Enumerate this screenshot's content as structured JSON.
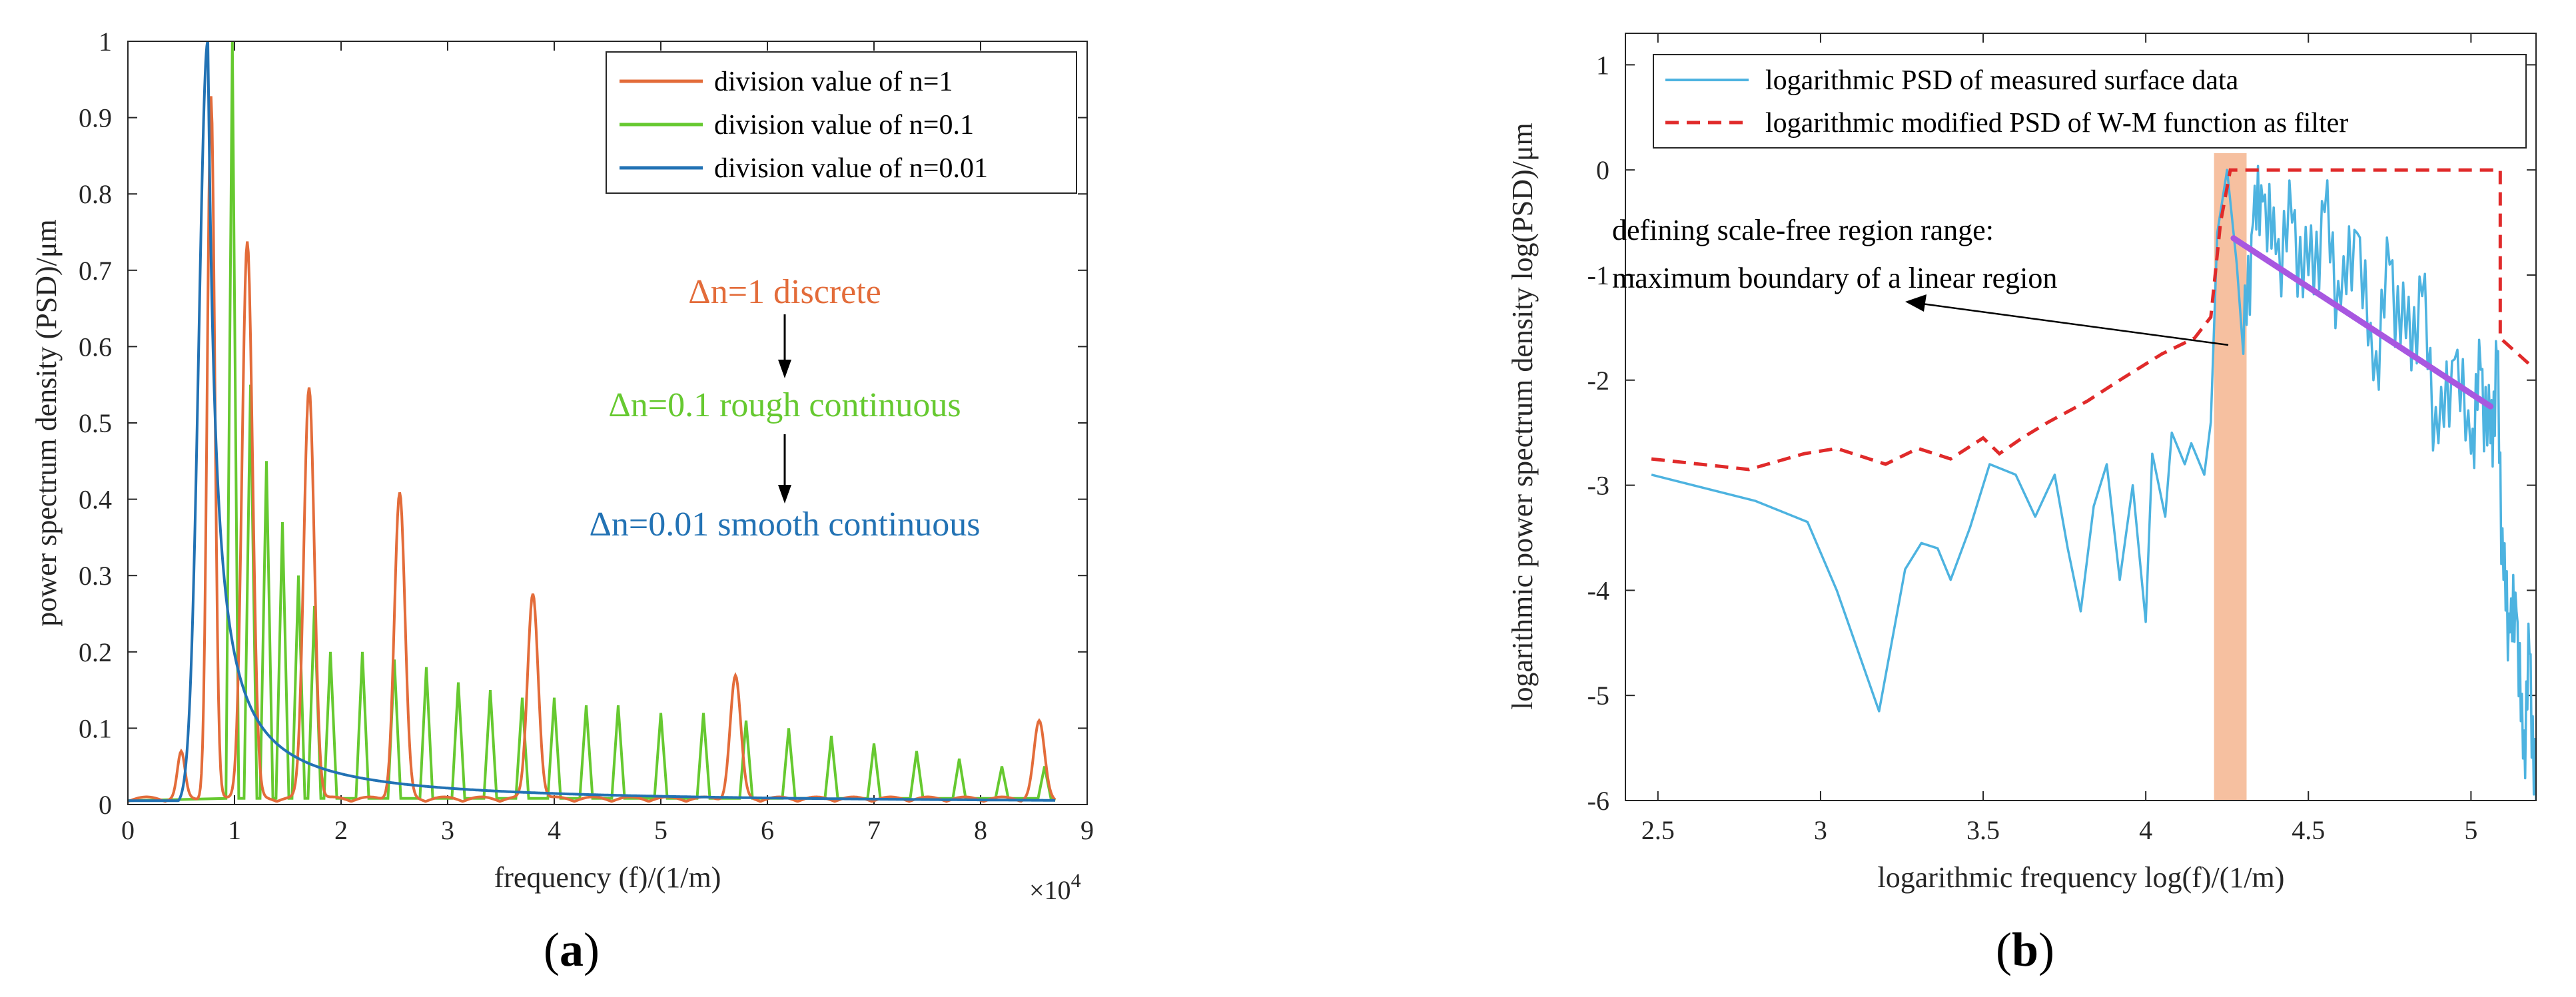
{
  "figure": {
    "panel_a_label": "(a)",
    "panel_b_label": "(b)"
  },
  "chart_data": [
    {
      "type": "line",
      "title": "",
      "xlabel": "frequency (f)/(1/m)",
      "ylabel": "power spectrum density (PSD)/μm",
      "x_exponent_label": "×10",
      "x_exponent_power": "4",
      "xlim": [
        0,
        9
      ],
      "ylim": [
        0,
        1
      ],
      "x_ticks": [
        "0",
        "1",
        "2",
        "3",
        "4",
        "5",
        "6",
        "7",
        "8",
        "9"
      ],
      "y_ticks": [
        "0",
        "0.1",
        "0.2",
        "0.3",
        "0.4",
        "0.5",
        "0.6",
        "0.7",
        "0.8",
        "0.9",
        "1"
      ],
      "legend_position": "top-right",
      "series": [
        {
          "name": "division value of n=1",
          "color": "#e36c3a",
          "peaks": [
            {
              "x": 0.5,
              "y": 0.06
            },
            {
              "x": 0.78,
              "y": 0.92
            },
            {
              "x": 1.12,
              "y": 0.73
            },
            {
              "x": 1.7,
              "y": 0.54
            },
            {
              "x": 2.55,
              "y": 0.4
            },
            {
              "x": 3.8,
              "y": 0.27
            },
            {
              "x": 5.7,
              "y": 0.16
            },
            {
              "x": 8.55,
              "y": 0.1
            }
          ]
        },
        {
          "name": "division value of n=0.1",
          "color": "#66c930",
          "peaks": [
            {
              "x": 0.98,
              "y": 1.0
            },
            {
              "x": 1.15,
              "y": 0.55
            },
            {
              "x": 1.3,
              "y": 0.45
            },
            {
              "x": 1.45,
              "y": 0.37
            },
            {
              "x": 1.6,
              "y": 0.3
            },
            {
              "x": 1.75,
              "y": 0.26
            },
            {
              "x": 1.9,
              "y": 0.2
            },
            {
              "x": 2.2,
              "y": 0.2
            },
            {
              "x": 2.5,
              "y": 0.19
            },
            {
              "x": 2.8,
              "y": 0.18
            },
            {
              "x": 3.1,
              "y": 0.16
            },
            {
              "x": 3.4,
              "y": 0.15
            },
            {
              "x": 3.7,
              "y": 0.14
            },
            {
              "x": 4.0,
              "y": 0.14
            },
            {
              "x": 4.3,
              "y": 0.13
            },
            {
              "x": 4.6,
              "y": 0.13
            },
            {
              "x": 5.0,
              "y": 0.12
            },
            {
              "x": 5.4,
              "y": 0.12
            },
            {
              "x": 5.8,
              "y": 0.11
            },
            {
              "x": 6.2,
              "y": 0.1
            },
            {
              "x": 6.6,
              "y": 0.09
            },
            {
              "x": 7.0,
              "y": 0.08
            },
            {
              "x": 7.4,
              "y": 0.07
            },
            {
              "x": 7.8,
              "y": 0.06
            },
            {
              "x": 8.2,
              "y": 0.05
            },
            {
              "x": 8.6,
              "y": 0.05
            }
          ]
        },
        {
          "name": "division value of n=0.01",
          "color": "#2272b4",
          "peak_x": 0.75,
          "peak_y": 1.0,
          "tail_end_x": 8.7,
          "tail_end_y": 0.005
        }
      ],
      "annotations": [
        {
          "text": "Δn=1 discrete",
          "color": "#e36c3a"
        },
        {
          "text": "Δn=0.1 rough continuous",
          "color": "#66c930"
        },
        {
          "text": "Δn=0.01 smooth continuous",
          "color": "#2272b4"
        }
      ]
    },
    {
      "type": "line",
      "title": "",
      "xlabel": "logarithmic frequency log(f)/(1/m)",
      "ylabel": "logarithmic power spectrum density log(PSD)/μm",
      "xlim": [
        2.4,
        5.2
      ],
      "ylim": [
        -6,
        1.3
      ],
      "x_ticks": [
        "2.5",
        "3",
        "3.5",
        "4",
        "4.5",
        "5"
      ],
      "y_ticks": [
        "1",
        "0",
        "-1",
        "-2",
        "-3",
        "-4",
        "-5",
        "-6"
      ],
      "legend_position": "top",
      "scale_free_region": {
        "x_start": 4.21,
        "x_end": 4.31,
        "color": "#f6c0a0"
      },
      "fit_line": {
        "x": [
          4.27,
          5.06
        ],
        "y": [
          -0.65,
          -2.25
        ],
        "color": "#a857e0"
      },
      "series": [
        {
          "name": "logarithmic PSD of measured surface data",
          "color": "#4db3e0",
          "style": "solid",
          "x": [
            2.48,
            2.8,
            2.96,
            3.05,
            3.18,
            3.26,
            3.31,
            3.36,
            3.4,
            3.46,
            3.52,
            3.6,
            3.66,
            3.72,
            3.76,
            3.8,
            3.84,
            3.88,
            3.92,
            3.96,
            4.0,
            4.02,
            4.06,
            4.08,
            4.12,
            4.14,
            4.18,
            4.2,
            4.22,
            4.25,
            4.28,
            4.3,
            4.33,
            4.36,
            4.4,
            4.45,
            4.5,
            4.55,
            4.6,
            4.65,
            4.7,
            4.75,
            4.8,
            4.85,
            4.9,
            4.95,
            5.0,
            5.03,
            5.06,
            5.08,
            5.1,
            5.12,
            5.14,
            5.16,
            5.18,
            5.2
          ],
          "y": [
            -2.9,
            -3.15,
            -3.35,
            -4.0,
            -5.15,
            -3.8,
            -3.55,
            -3.6,
            -3.9,
            -3.4,
            -2.8,
            -2.9,
            -3.3,
            -2.9,
            -3.6,
            -4.2,
            -3.2,
            -2.8,
            -3.9,
            -3.0,
            -4.3,
            -2.7,
            -3.3,
            -2.5,
            -2.8,
            -2.6,
            -2.9,
            -2.4,
            -0.6,
            0.0,
            -0.9,
            -1.75,
            -0.5,
            -0.3,
            -0.8,
            -0.5,
            -1.0,
            -0.4,
            -1.3,
            -0.6,
            -2.0,
            -0.9,
            -1.6,
            -1.2,
            -2.6,
            -1.8,
            -2.7,
            -1.9,
            -2.6,
            -1.8,
            -3.9,
            -4.4,
            -4.2,
            -5.6,
            -4.6,
            -6.0
          ]
        },
        {
          "name": "logarithmic modified PSD of W-M function as filter",
          "color": "#e02a2a",
          "style": "dashed",
          "x": [
            2.48,
            2.78,
            2.95,
            3.05,
            3.2,
            3.3,
            3.4,
            3.5,
            3.55,
            3.62,
            3.7,
            3.82,
            3.92,
            4.05,
            4.15,
            4.2,
            4.23,
            4.26,
            5.09,
            5.09,
            5.18
          ],
          "y": [
            -2.75,
            -2.85,
            -2.7,
            -2.65,
            -2.8,
            -2.65,
            -2.75,
            -2.55,
            -2.7,
            -2.55,
            -2.4,
            -2.2,
            -2.0,
            -1.75,
            -1.6,
            -1.4,
            -0.5,
            0.0,
            0.0,
            -1.6,
            -1.85
          ]
        }
      ],
      "annotations": [
        {
          "text": "defining scale-free region range:"
        },
        {
          "text": "maximum boundary of a linear region"
        }
      ]
    }
  ]
}
